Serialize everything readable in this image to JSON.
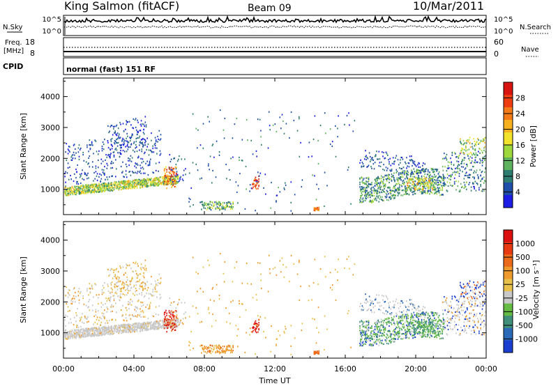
{
  "header": {
    "station": "King Salmon (fitACF)",
    "beam": "Beam 09",
    "date": "10/Mar/2011"
  },
  "top_panels": {
    "nsky_label": "N.Sky",
    "nsky_ticks": [
      "10^5",
      "10^0"
    ],
    "nsearch_label": "N.Search",
    "nsearch_ticks": [
      "10^5",
      "10^0"
    ],
    "freq_label_1": "Freq.",
    "freq_label_2": "[MHz]",
    "freq_ticks": [
      "18",
      "8"
    ],
    "nave_label": "Nave",
    "nave_ticks": [
      "60",
      "0"
    ],
    "cpid_label": "CPID",
    "cpid_text": "normal (fast) 151 RF"
  },
  "chart_data": [
    {
      "type": "heatmap",
      "quantity": "Power",
      "ylabel": "Slant Range [km]",
      "ylim": [
        180,
        4600
      ],
      "yticks": [
        "1000",
        "2000",
        "3000",
        "4000"
      ],
      "xlim_hours": [
        0,
        24
      ],
      "colorbar": {
        "label": "Power [dB]",
        "ticks": [
          "4",
          "8",
          "12",
          "16",
          "20",
          "24",
          "28"
        ],
        "colors": [
          "#1d1de6",
          "#1f4ea8",
          "#2f7d70",
          "#5fb25e",
          "#9fd83c",
          "#f2e22c",
          "#f6b020",
          "#f47a18",
          "#ef3d12",
          "#d81410"
        ]
      }
    },
    {
      "type": "heatmap",
      "quantity": "Velocity",
      "ylabel": "Slant Range [km]",
      "ylim": [
        180,
        4600
      ],
      "yticks": [
        "1000",
        "2000",
        "3000",
        "4000"
      ],
      "xlim_hours": [
        0,
        24
      ],
      "colorbar": {
        "label": "Velocity [m s⁻¹]",
        "ticks": [
          "1000",
          "500",
          "100",
          "25",
          "-25",
          "-100",
          "-500",
          "-1000"
        ],
        "colors": [
          "#1a3fd0",
          "#2a6ab8",
          "#3f8f7a",
          "#66bb44",
          "#c8c8c8",
          "#e8c04a",
          "#ef9a2c",
          "#ec6a1c",
          "#e83a12",
          "#dc1010"
        ]
      }
    }
  ],
  "xaxis": {
    "ticks": [
      "00:00",
      "04:00",
      "08:00",
      "12:00",
      "16:00",
      "20:00",
      "00:00"
    ],
    "label": "Time UT"
  }
}
